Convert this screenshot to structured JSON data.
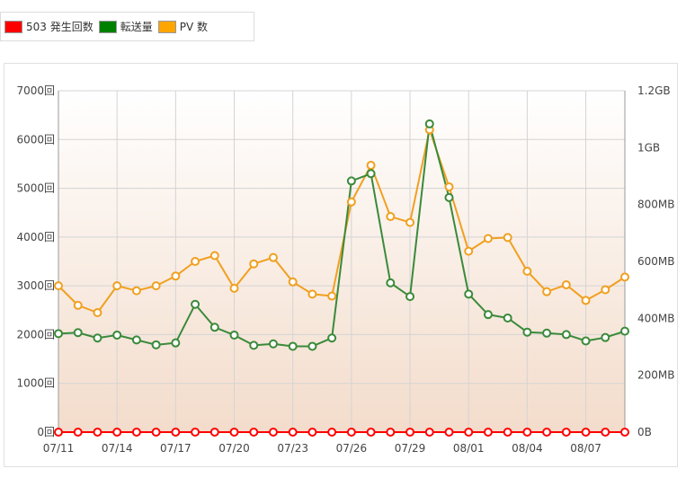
{
  "legend": [
    {
      "label": "503 発生回数",
      "color": "#ff0000"
    },
    {
      "label": "転送量",
      "color": "#008000"
    },
    {
      "label": "PV 数",
      "color": "#ffa500"
    }
  ],
  "chart_data": {
    "type": "line",
    "x_categories": [
      "07/11",
      "07/12",
      "07/13",
      "07/14",
      "07/15",
      "07/16",
      "07/17",
      "07/18",
      "07/19",
      "07/20",
      "07/21",
      "07/22",
      "07/23",
      "07/24",
      "07/25",
      "07/26",
      "07/27",
      "07/28",
      "07/29",
      "07/30",
      "07/31",
      "08/01",
      "08/02",
      "08/03",
      "08/04",
      "08/05",
      "08/06",
      "08/07",
      "08/08",
      "08/09"
    ],
    "x_tick_labels": [
      "07/11",
      "07/14",
      "07/17",
      "07/20",
      "07/23",
      "07/26",
      "07/29",
      "08/01",
      "08/04",
      "08/07"
    ],
    "left_axis": {
      "ylim": [
        0,
        7000
      ],
      "ticks": [
        "0回",
        "1000回",
        "2000回",
        "3000回",
        "4000回",
        "5000回",
        "6000回",
        "7000回"
      ]
    },
    "right_axis": {
      "ylim": [
        0,
        1.2
      ],
      "unit": "GB",
      "ticks": [
        "0B",
        "200MB",
        "400MB",
        "600MB",
        "800MB",
        "1GB",
        "1.2GB"
      ]
    },
    "series": [
      {
        "name": "PV 数",
        "color": "#f0a020",
        "axis": "left",
        "values": [
          3000,
          2600,
          2450,
          3000,
          2900,
          3000,
          3200,
          3500,
          3620,
          2950,
          3450,
          3580,
          3080,
          2830,
          2790,
          4720,
          5470,
          4420,
          4300,
          6200,
          5030,
          3710,
          3970,
          3990,
          3300,
          2880,
          3020,
          2700,
          2920,
          3180
        ]
      },
      {
        "name": "転送量",
        "color": "#3a8a3a",
        "axis": "left",
        "values": [
          2020,
          2040,
          1930,
          1990,
          1890,
          1790,
          1830,
          2620,
          2150,
          1990,
          1780,
          1810,
          1760,
          1760,
          1930,
          5150,
          5300,
          3060,
          2780,
          6320,
          4810,
          2830,
          2410,
          2340,
          2050,
          2030,
          2000,
          1870,
          1940,
          2070
        ]
      },
      {
        "name": "503 発生回数",
        "color": "#ff0000",
        "axis": "left",
        "values": [
          0,
          0,
          0,
          0,
          0,
          0,
          0,
          0,
          0,
          0,
          0,
          0,
          0,
          0,
          0,
          0,
          0,
          0,
          0,
          0,
          0,
          0,
          0,
          0,
          0,
          0,
          0,
          0,
          0,
          0
        ]
      }
    ],
    "grid": true,
    "legend_position": "top-left"
  }
}
